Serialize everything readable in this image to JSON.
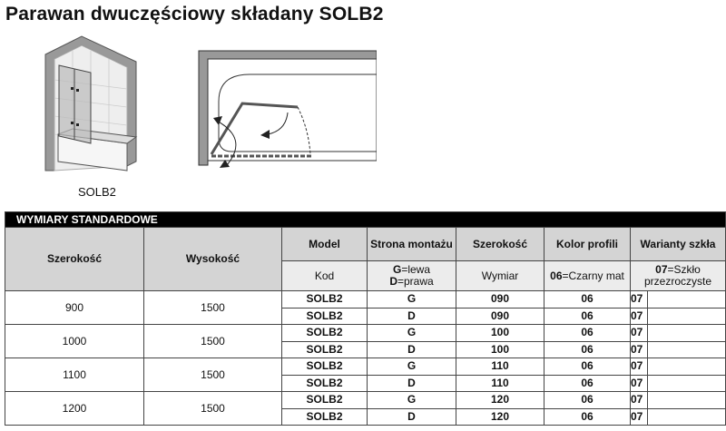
{
  "title": "Parawan dwuczęściowy składany  SOLB2",
  "image_caption": "SOLB2",
  "table": {
    "section_title": "WYMIARY STANDARDOWE",
    "headers": {
      "width": "Szerokość",
      "height": "Wysokość",
      "model": "Model",
      "side": "Strona montażu",
      "size": "Szerokość",
      "color": "Kolor profili",
      "glass": "Warianty szkła"
    },
    "subheaders": {
      "model": "Kod",
      "side_g_code": "G",
      "side_g": "=lewa",
      "side_d_code": "D",
      "side_d": "=prawa",
      "size": "Wymiar",
      "color_code": "06",
      "color": "=Czarny mat",
      "glass_code": "07",
      "glass": "=Szkło przezroczyste"
    },
    "groups": [
      {
        "width": "900",
        "height": "1500",
        "rows": [
          {
            "model": "SOLB2",
            "side": "G",
            "size": "090",
            "color": "06",
            "glass": "07"
          },
          {
            "model": "SOLB2",
            "side": "D",
            "size": "090",
            "color": "06",
            "glass": "07"
          }
        ]
      },
      {
        "width": "1000",
        "height": "1500",
        "rows": [
          {
            "model": "SOLB2",
            "side": "G",
            "size": "100",
            "color": "06",
            "glass": "07"
          },
          {
            "model": "SOLB2",
            "side": "D",
            "size": "100",
            "color": "06",
            "glass": "07"
          }
        ]
      },
      {
        "width": "1100",
        "height": "1500",
        "rows": [
          {
            "model": "SOLB2",
            "side": "G",
            "size": "110",
            "color": "06",
            "glass": "07"
          },
          {
            "model": "SOLB2",
            "side": "D",
            "size": "110",
            "color": "06",
            "glass": "07"
          }
        ]
      },
      {
        "width": "1200",
        "height": "1500",
        "rows": [
          {
            "model": "SOLB2",
            "side": "G",
            "size": "120",
            "color": "06",
            "glass": "07"
          },
          {
            "model": "SOLB2",
            "side": "D",
            "size": "120",
            "color": "06",
            "glass": "07"
          }
        ]
      }
    ]
  }
}
